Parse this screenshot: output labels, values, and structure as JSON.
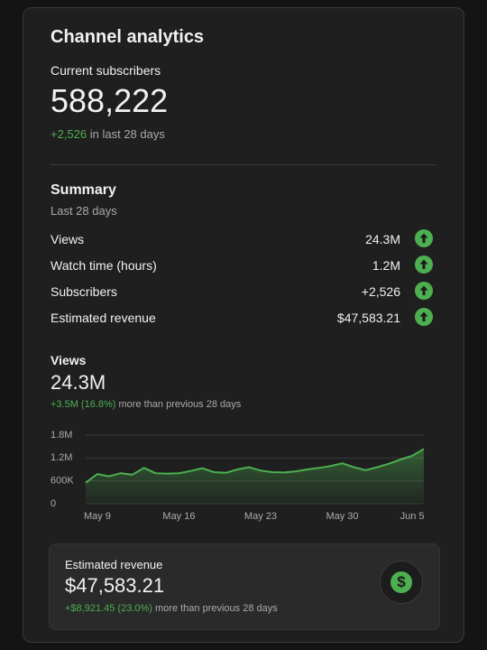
{
  "header": {
    "title": "Channel analytics"
  },
  "subscribers": {
    "label": "Current subscribers",
    "count": "588,222",
    "change": "+2,526",
    "change_note": "in last 28 days"
  },
  "summary": {
    "title": "Summary",
    "period": "Last 28 days",
    "rows": [
      {
        "label": "Views",
        "value": "24.3M"
      },
      {
        "label": "Watch time (hours)",
        "value": "1.2M"
      },
      {
        "label": "Subscribers",
        "value": "+2,526"
      },
      {
        "label": "Estimated revenue",
        "value": "$47,583.21"
      }
    ]
  },
  "views": {
    "title": "Views",
    "total": "24.3M",
    "change": "+3.5M (16.8%)",
    "change_note": "more than previous 28 days"
  },
  "chart_data": {
    "type": "area",
    "categories": [
      null,
      "May 9",
      null,
      null,
      null,
      null,
      null,
      null,
      "May 16",
      null,
      null,
      null,
      null,
      null,
      null,
      "May 23",
      null,
      null,
      null,
      null,
      null,
      null,
      "May 30",
      null,
      null,
      null,
      null,
      null,
      "Jun 5",
      null
    ],
    "values": [
      550000,
      780000,
      720000,
      800000,
      760000,
      940000,
      800000,
      790000,
      800000,
      860000,
      930000,
      830000,
      810000,
      900000,
      960000,
      870000,
      830000,
      820000,
      850000,
      900000,
      940000,
      990000,
      1060000,
      960000,
      880000,
      960000,
      1050000,
      1160000,
      1260000,
      1440000
    ],
    "color": "#4caf50",
    "ylim": [
      0,
      1800000
    ],
    "yticks": [
      0,
      {
        "value": 600000,
        "label": "600K"
      },
      {
        "value": 1200000,
        "label": "1.2M"
      },
      {
        "value": 1800000,
        "label": "1.8M"
      }
    ],
    "grid": true
  },
  "revenue": {
    "label": "Estimated revenue",
    "amount": "$47,583.21",
    "change": "+$8,921.45 (23.0%)",
    "change_note": "more than previous 28 days"
  }
}
